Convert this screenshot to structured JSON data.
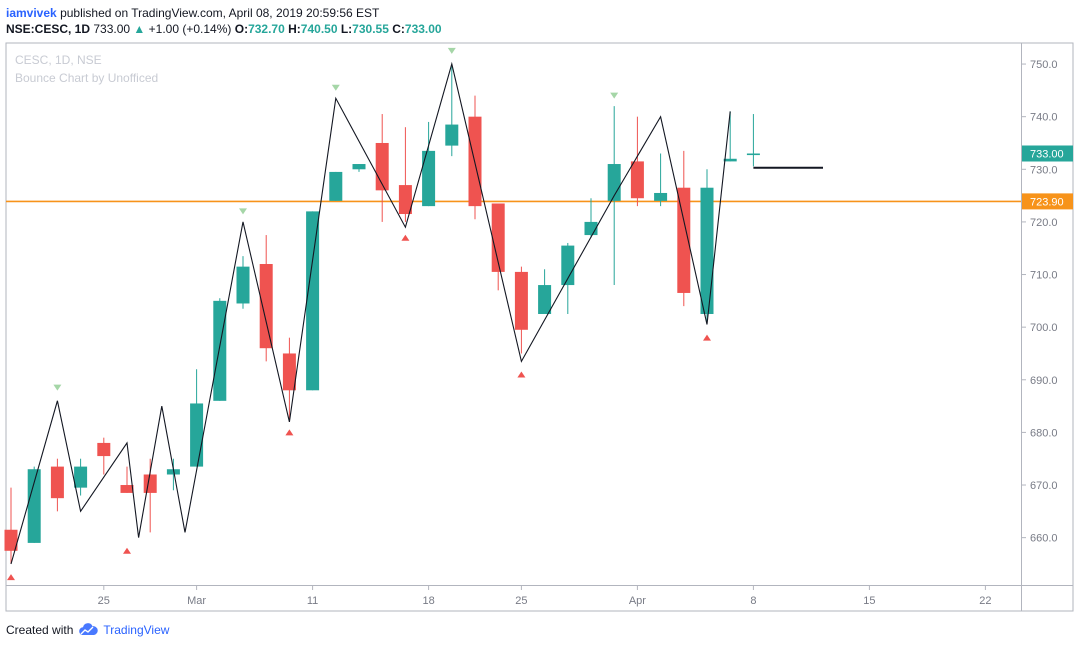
{
  "header": {
    "user": "iamvivek",
    "published": "published on TradingView.com, April 08, 2019 20:59:56 EST",
    "symbol": "NSE:CESC, 1D",
    "price": "733.00",
    "up_arrow": "▲",
    "change": "+1.00 (+0.14%)",
    "o_label": "O:",
    "o_value": "732.70",
    "h_label": "H:",
    "h_value": "740.50",
    "l_label": "L:",
    "l_value": "730.55",
    "c_label": "C:",
    "c_value": "733.00"
  },
  "chart": {
    "watermark_title": "CESC, 1D, NSE",
    "watermark_subtitle": "Bounce Chart by Unofficed"
  },
  "footer": {
    "created_with": "Created with",
    "brand": "TradingView",
    "logo_icon": "tradingview-cloud-icon"
  },
  "colors": {
    "up": "#26a69a",
    "down": "#ef5350",
    "orange_line": "#f7931a",
    "zigzag": "#131722",
    "marker_up": "#a5d6a7",
    "marker_down": "#ef5350"
  },
  "chart_data": {
    "type": "candlestick",
    "yrange": [
      651,
      754
    ],
    "y_ticks": [
      660,
      670,
      680,
      690,
      700,
      710,
      720,
      730,
      740,
      750
    ],
    "x_ticks": [
      {
        "label": "25",
        "idx": 4
      },
      {
        "label": "Mar",
        "idx": 8
      },
      {
        "label": "11",
        "idx": 13
      },
      {
        "label": "18",
        "idx": 18
      },
      {
        "label": "25",
        "idx": 22
      },
      {
        "label": "Apr",
        "idx": 27
      },
      {
        "label": "8",
        "idx": 32
      },
      {
        "label": "15",
        "idx": 37
      },
      {
        "label": "22",
        "idx": 42
      }
    ],
    "candles": [
      {
        "o": 661.5,
        "h": 669.5,
        "l": 655,
        "c": 657.5
      },
      {
        "o": 659,
        "h": 673.5,
        "l": 659,
        "c": 673
      },
      {
        "o": 673.5,
        "h": 675,
        "l": 665,
        "c": 667.5
      },
      {
        "o": 669.5,
        "h": 675,
        "l": 668,
        "c": 673.5
      },
      {
        "o": 678,
        "h": 679,
        "l": 672,
        "c": 675.5
      },
      {
        "o": 670,
        "h": 673.5,
        "l": 668.5,
        "c": 668.5
      },
      {
        "o": 672,
        "h": 675,
        "l": 661,
        "c": 668.5
      },
      {
        "o": 672,
        "h": 675,
        "l": 669,
        "c": 673
      },
      {
        "o": 673.5,
        "h": 692,
        "l": 673.5,
        "c": 685.5
      },
      {
        "o": 686,
        "h": 705.5,
        "l": 686,
        "c": 705
      },
      {
        "o": 704.5,
        "h": 713.5,
        "l": 703.5,
        "c": 711.5
      },
      {
        "o": 712,
        "h": 717.5,
        "l": 693.5,
        "c": 696
      },
      {
        "o": 695,
        "h": 698,
        "l": 682,
        "c": 688
      },
      {
        "o": 688,
        "h": 722,
        "l": 688,
        "c": 722
      },
      {
        "o": 724,
        "h": 729.5,
        "l": 724,
        "c": 729.5
      },
      {
        "o": 730,
        "h": 731,
        "l": 729.5,
        "c": 731
      },
      {
        "o": 735,
        "h": 740.5,
        "l": 720,
        "c": 726
      },
      {
        "o": 727,
        "h": 738,
        "l": 720,
        "c": 721.5
      },
      {
        "o": 723,
        "h": 739,
        "l": 723,
        "c": 733.5
      },
      {
        "o": 734.5,
        "h": 749.5,
        "l": 732.5,
        "c": 738.5
      },
      {
        "o": 740,
        "h": 744,
        "l": 720.5,
        "c": 723
      },
      {
        "o": 723.5,
        "h": 723.5,
        "l": 707,
        "c": 710.5
      },
      {
        "o": 710.5,
        "h": 711.5,
        "l": 695,
        "c": 699.5
      },
      {
        "o": 702.5,
        "h": 711,
        "l": 702.5,
        "c": 708
      },
      {
        "o": 708,
        "h": 716,
        "l": 702.5,
        "c": 715.5
      },
      {
        "o": 717.5,
        "h": 724.5,
        "l": 717,
        "c": 720
      },
      {
        "o": 724,
        "h": 742,
        "l": 708,
        "c": 731
      },
      {
        "o": 731.5,
        "h": 740,
        "l": 723,
        "c": 724.5
      },
      {
        "o": 724,
        "h": 733,
        "l": 723,
        "c": 725.5
      },
      {
        "o": 726.5,
        "h": 733.5,
        "l": 704,
        "c": 706.5
      },
      {
        "o": 702.5,
        "h": 730,
        "l": 700.5,
        "c": 726.5
      },
      {
        "o": 731.5,
        "h": 741,
        "l": 731.5,
        "c": 732
      },
      {
        "o": 732.7,
        "h": 740.5,
        "l": 730.55,
        "c": 733
      }
    ],
    "zigzag": [
      {
        "idx": 0,
        "v": 655
      },
      {
        "idx": 2,
        "v": 686
      },
      {
        "idx": 3,
        "v": 665
      },
      {
        "idx": 5,
        "v": 678
      },
      {
        "idx": 5.5,
        "v": 660
      },
      {
        "idx": 6.5,
        "v": 685
      },
      {
        "idx": 7.5,
        "v": 661
      },
      {
        "idx": 10,
        "v": 720
      },
      {
        "idx": 12,
        "v": 682
      },
      {
        "idx": 14,
        "v": 743.5
      },
      {
        "idx": 17,
        "v": 719
      },
      {
        "idx": 19,
        "v": 750
      },
      {
        "idx": 22,
        "v": 693.5
      },
      {
        "idx": 26,
        "v": 725
      },
      {
        "idx": 28,
        "v": 740
      },
      {
        "idx": 30,
        "v": 700.5
      },
      {
        "idx": 31,
        "v": 741
      }
    ],
    "markers_down": [
      {
        "idx": 2,
        "v": 688.5
      },
      {
        "idx": 10,
        "v": 722
      },
      {
        "idx": 14,
        "v": 745.5
      },
      {
        "idx": 19,
        "v": 752.5
      },
      {
        "idx": 26,
        "v": 744
      }
    ],
    "markers_up": [
      {
        "idx": 0,
        "v": 652.5
      },
      {
        "idx": 5,
        "v": 657.5
      },
      {
        "idx": 12,
        "v": 680
      },
      {
        "idx": 17,
        "v": 717
      },
      {
        "idx": 22,
        "v": 691
      },
      {
        "idx": 30,
        "v": 698
      }
    ],
    "hlines": [
      {
        "value": 723.9,
        "label": "723.90"
      },
      {
        "value": 733.0,
        "label": "733.00"
      }
    ],
    "target_segment": {
      "from_idx": 32,
      "to_idx": 35,
      "value": 730.3
    }
  }
}
